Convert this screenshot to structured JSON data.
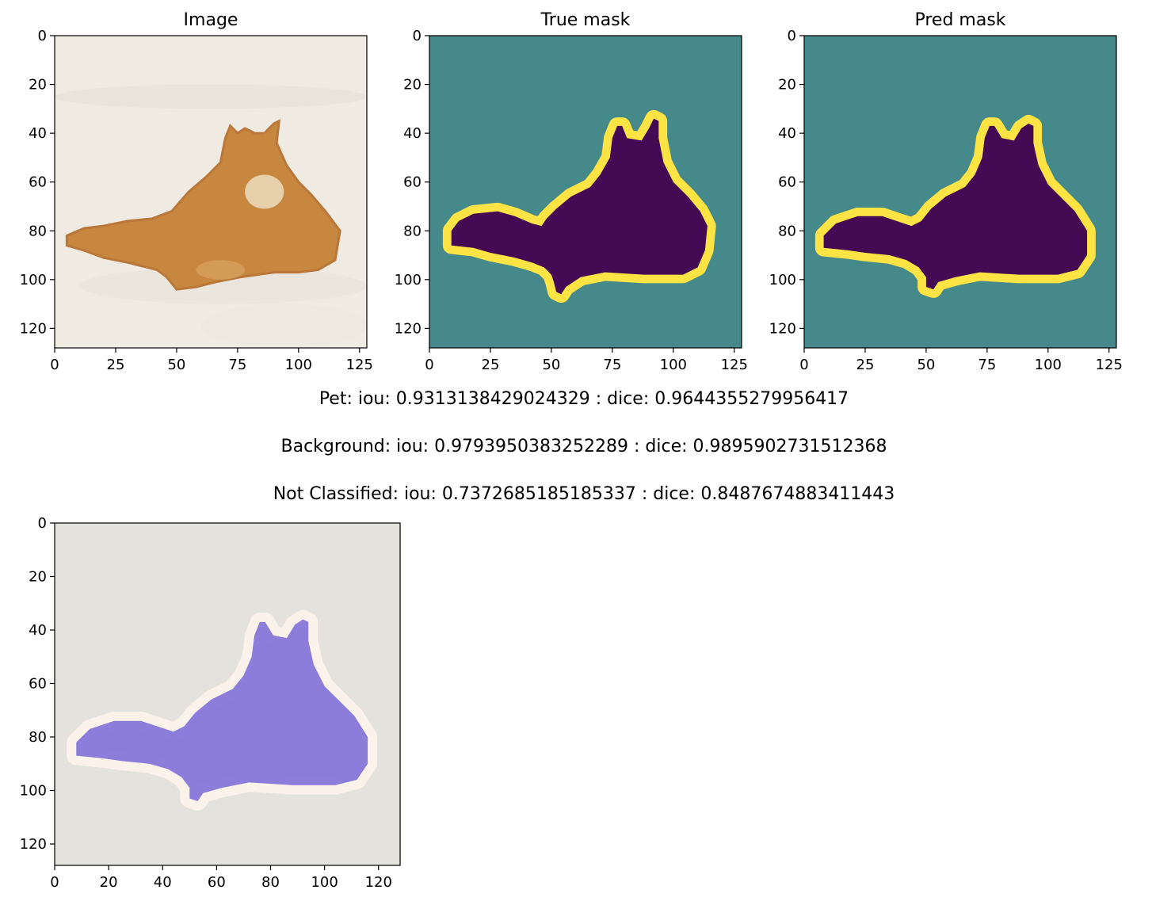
{
  "figure": {
    "panels": [
      {
        "title": "Image",
        "content": "cat photo"
      },
      {
        "title": "True mask",
        "content": "segmentation mask"
      },
      {
        "title": "Pred mask",
        "content": "segmentation mask"
      }
    ],
    "overlay": {
      "content": "cat photo with predicted mask overlay"
    },
    "metrics": [
      "Pet: iou: 0.9313138429024329 : dice: 0.9644355279956417",
      "Background: iou: 0.9793950383252289 : dice: 0.9895902731512368",
      "Not Classified: iou: 0.7372685185185337 : dice: 0.8487674883411443"
    ]
  },
  "colors": {
    "mask_background": "#45898a",
    "mask_pet": "#440a54",
    "mask_border": "#fde344",
    "photo_background": "#efebe3",
    "cat_fur": "#c8873f",
    "overlay_background": "#e3e2dd",
    "overlay_pet": "#7f70d9",
    "overlay_border": "#f7e5d4"
  },
  "chart_data": [
    {
      "type": "heatmap",
      "title": "Image",
      "xlim": [
        0,
        128
      ],
      "ylim": [
        128,
        0
      ],
      "xticks": [
        0,
        25,
        50,
        75,
        100,
        125
      ],
      "yticks": [
        0,
        20,
        40,
        60,
        80,
        100,
        120
      ]
    },
    {
      "type": "heatmap",
      "title": "True mask",
      "xlim": [
        0,
        128
      ],
      "ylim": [
        128,
        0
      ],
      "xticks": [
        0,
        25,
        50,
        75,
        100,
        125
      ],
      "yticks": [
        0,
        20,
        40,
        60,
        80,
        100,
        120
      ]
    },
    {
      "type": "heatmap",
      "title": "Pred mask",
      "xlim": [
        0,
        128
      ],
      "ylim": [
        128,
        0
      ],
      "xticks": [
        0,
        25,
        50,
        75,
        100,
        125
      ],
      "yticks": [
        0,
        20,
        40,
        60,
        80,
        100,
        120
      ]
    },
    {
      "type": "heatmap",
      "title": "",
      "xlim": [
        0,
        128
      ],
      "ylim": [
        128,
        0
      ],
      "xticks": [
        0,
        20,
        40,
        60,
        80,
        100,
        120
      ],
      "yticks": [
        0,
        20,
        40,
        60,
        80,
        100,
        120
      ]
    }
  ]
}
